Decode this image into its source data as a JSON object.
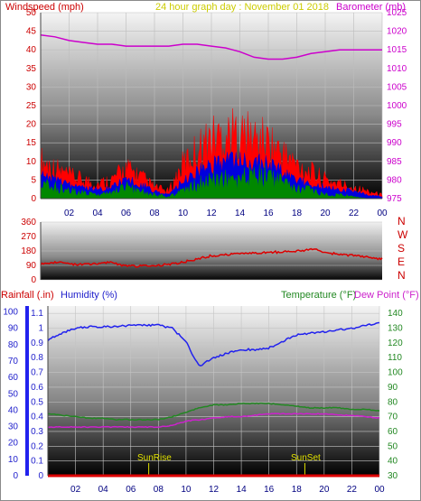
{
  "header": {
    "windspeed_label": "Windspeed (mph)",
    "graph_title": "24 hour graph day : November 01 2018",
    "barometer_label": "Barometer (mb)"
  },
  "time_ticks": [
    "02",
    "04",
    "06",
    "08",
    "10",
    "12",
    "14",
    "16",
    "18",
    "20",
    "22",
    "00"
  ],
  "wind_panel": {
    "y_ticks": [
      "0",
      "5",
      "10",
      "15",
      "20",
      "25",
      "30",
      "35",
      "40",
      "45",
      "50"
    ],
    "baro_ticks": [
      "975",
      "980",
      "985",
      "990",
      "995",
      "1000",
      "1005",
      "1010",
      "1015",
      "1020",
      "1025"
    ]
  },
  "dir_panel": {
    "y_ticks": [
      "0",
      "90",
      "180",
      "270",
      "360"
    ],
    "compass": [
      "N",
      "W",
      "S",
      "E",
      "N"
    ]
  },
  "bottom_panel": {
    "rain_label": "Rainfall (.in)",
    "humidity_label": "Humidity (%)",
    "temp_label": "Temperature (°F)",
    "dew_label": "Dew Point (°F)",
    "humidity_ticks": [
      "0",
      "10",
      "20",
      "30",
      "40",
      "50",
      "60",
      "70",
      "80",
      "90",
      "100"
    ],
    "rain_ticks": [
      "0",
      "0.1",
      "0.2",
      "0.3",
      "0.4",
      "0.5",
      "0.6",
      "0.7",
      "0.8",
      "0.9",
      "1",
      "1.1"
    ],
    "temp_ticks": [
      "30",
      "40",
      "50",
      "60",
      "70",
      "80",
      "90",
      "100",
      "110",
      "120",
      "130",
      "140"
    ],
    "sunrise_label": "SunRise",
    "sunset_label": "SunSet"
  },
  "chart_data": [
    {
      "type": "area",
      "title": "24 hour graph day : November 01 2018",
      "x_unit": "hour",
      "ylabel": "Windspeed (mph)",
      "ylim": [
        0,
        50
      ],
      "y2label": "Barometer (mb)",
      "y2lim": [
        975,
        1025
      ],
      "colors": {
        "gust": "#ff0000",
        "average": "#0000dd",
        "low": "#008800",
        "barometer": "#cc00cc"
      },
      "series": [
        {
          "name": "Gust",
          "x": [
            0,
            1,
            2,
            3,
            4,
            5,
            6,
            7,
            8,
            9,
            10,
            11,
            12,
            13,
            14,
            15,
            16,
            17,
            18,
            19,
            20,
            21,
            22,
            23,
            24
          ],
          "values": [
            10,
            8,
            6,
            5,
            4,
            5,
            8,
            6,
            3,
            2,
            9,
            13,
            16,
            17,
            17,
            16,
            15,
            12,
            9,
            7,
            5,
            4,
            3,
            2,
            1
          ]
        },
        {
          "name": "Average",
          "x": [
            0,
            1,
            2,
            3,
            4,
            5,
            6,
            7,
            8,
            9,
            10,
            11,
            12,
            13,
            14,
            15,
            16,
            17,
            18,
            19,
            20,
            21,
            22,
            23,
            24
          ],
          "values": [
            6,
            5,
            4,
            3,
            2.5,
            3,
            5,
            4,
            2,
            1,
            5,
            7,
            9,
            10,
            10,
            10,
            9,
            7,
            5,
            4,
            3,
            2.5,
            2,
            1,
            0.5
          ]
        },
        {
          "name": "Low",
          "x": [
            0,
            1,
            2,
            3,
            4,
            5,
            6,
            7,
            8,
            9,
            10,
            11,
            12,
            13,
            14,
            15,
            16,
            17,
            18,
            19,
            20,
            21,
            22,
            23,
            24
          ],
          "values": [
            4,
            3,
            2,
            1.5,
            1,
            1.5,
            3,
            2,
            1,
            0.5,
            2,
            4,
            5,
            5,
            5,
            6,
            6,
            4,
            3,
            2,
            1,
            1,
            0.5,
            0,
            0
          ]
        },
        {
          "name": "Barometer",
          "x": [
            0,
            1,
            2,
            3,
            4,
            5,
            6,
            7,
            8,
            9,
            10,
            11,
            12,
            13,
            14,
            15,
            16,
            17,
            18,
            19,
            20,
            21,
            22,
            23,
            24
          ],
          "values": [
            1019,
            1018.5,
            1017.5,
            1017,
            1016.5,
            1016.5,
            1016,
            1016,
            1016,
            1016,
            1016.5,
            1016.5,
            1016,
            1015.5,
            1014.5,
            1013,
            1012.5,
            1012.5,
            1013,
            1014,
            1014.5,
            1015,
            1015,
            1015,
            1015
          ]
        }
      ]
    },
    {
      "type": "line",
      "ylabel": "Wind direction",
      "ylim": [
        0,
        360
      ],
      "colors": {
        "direction": "#dd0000"
      },
      "series": [
        {
          "name": "Direction",
          "x": [
            0,
            1,
            2,
            3,
            4,
            5,
            6,
            7,
            8,
            9,
            10,
            11,
            12,
            13,
            14,
            15,
            16,
            17,
            18,
            19,
            20,
            21,
            22,
            23,
            24
          ],
          "values": [
            100,
            110,
            100,
            95,
            100,
            110,
            85,
            85,
            90,
            95,
            110,
            130,
            150,
            155,
            165,
            165,
            170,
            175,
            180,
            190,
            175,
            155,
            150,
            140,
            130
          ]
        }
      ]
    },
    {
      "type": "line",
      "y_humidity_lim": [
        0,
        100
      ],
      "y_rain_lim": [
        0,
        1.15
      ],
      "y_temp_lim": [
        30,
        145
      ],
      "colors": {
        "humidity": "#2222ee",
        "temperature": "#228822",
        "dew_point": "#cc22cc",
        "rainfall": "#dd0000"
      },
      "series": [
        {
          "name": "Humidity",
          "axis": "humidity",
          "x": [
            0,
            1,
            2,
            3,
            4,
            5,
            6,
            7,
            8,
            9,
            10,
            10.5,
            11,
            11.5,
            12,
            13,
            14,
            15,
            16,
            17,
            18,
            19,
            20,
            21,
            22,
            23,
            24
          ],
          "values": [
            83,
            87,
            90,
            91,
            91,
            91,
            92,
            92,
            92,
            90,
            82,
            73,
            67,
            70,
            72,
            75,
            77,
            77,
            78,
            82,
            86,
            87,
            88,
            89,
            90,
            92,
            93
          ]
        },
        {
          "name": "Temperature",
          "axis": "temp",
          "x": [
            0,
            1,
            2,
            3,
            4,
            5,
            6,
            7,
            8,
            9,
            10,
            11,
            12,
            13,
            14,
            15,
            16,
            17,
            18,
            19,
            20,
            21,
            22,
            23,
            24
          ],
          "values": [
            72,
            71,
            70,
            69,
            69,
            68,
            68,
            68,
            68,
            70,
            73,
            76,
            78,
            78,
            79,
            79,
            79,
            78,
            77,
            76,
            76,
            76,
            75,
            75,
            74
          ]
        },
        {
          "name": "Dew Point",
          "axis": "temp",
          "x": [
            0,
            1,
            2,
            3,
            4,
            5,
            6,
            7,
            8,
            9,
            10,
            11,
            12,
            13,
            14,
            15,
            16,
            17,
            18,
            19,
            20,
            21,
            22,
            23,
            24
          ],
          "values": [
            63,
            63,
            63,
            63,
            63,
            63,
            63,
            63,
            63,
            64,
            67,
            68,
            69,
            70,
            70,
            71,
            72,
            72,
            72,
            72,
            72,
            71,
            71,
            70,
            69
          ]
        },
        {
          "name": "Rainfall",
          "axis": "rain",
          "x": [
            0,
            24
          ],
          "values": [
            0,
            0
          ]
        }
      ],
      "annotations": [
        {
          "label": "SunRise",
          "x": 7.3
        },
        {
          "label": "SunSet",
          "x": 18.6
        }
      ]
    }
  ]
}
